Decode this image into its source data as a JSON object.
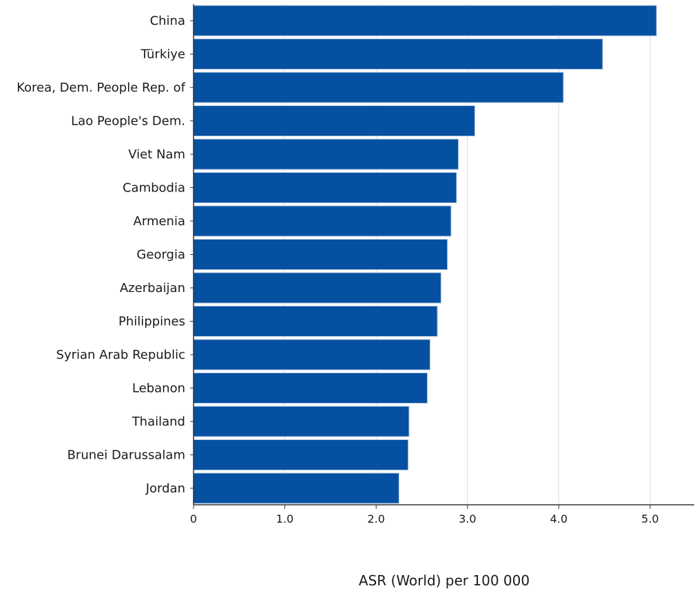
{
  "chart_data": {
    "type": "bar",
    "orientation": "horizontal",
    "categories": [
      "China",
      "Türkiye",
      "Korea, Dem. People Rep. of",
      "Lao People's Dem.",
      "Viet Nam",
      "Cambodia",
      "Armenia",
      "Georgia",
      "Azerbaijan",
      "Philippines",
      "Syrian Arab Republic",
      "Lebanon",
      "Thailand",
      "Brunei Darussalam",
      "Jordan"
    ],
    "values": [
      5.07,
      4.48,
      4.05,
      3.08,
      2.9,
      2.88,
      2.82,
      2.78,
      2.71,
      2.67,
      2.59,
      2.56,
      2.36,
      2.35,
      2.25
    ],
    "title": "",
    "xlabel": "ASR (World) per 100 000",
    "ylabel": "",
    "xlim": [
      0,
      5.5
    ],
    "xticks": [
      0,
      1,
      2,
      3,
      4,
      5
    ],
    "xtick_labels": [
      "0",
      "1.0",
      "2.0",
      "3.0",
      "4.0",
      "5.0"
    ],
    "grid": "vertical",
    "legend": "none",
    "bar_color": "#0550a0"
  }
}
